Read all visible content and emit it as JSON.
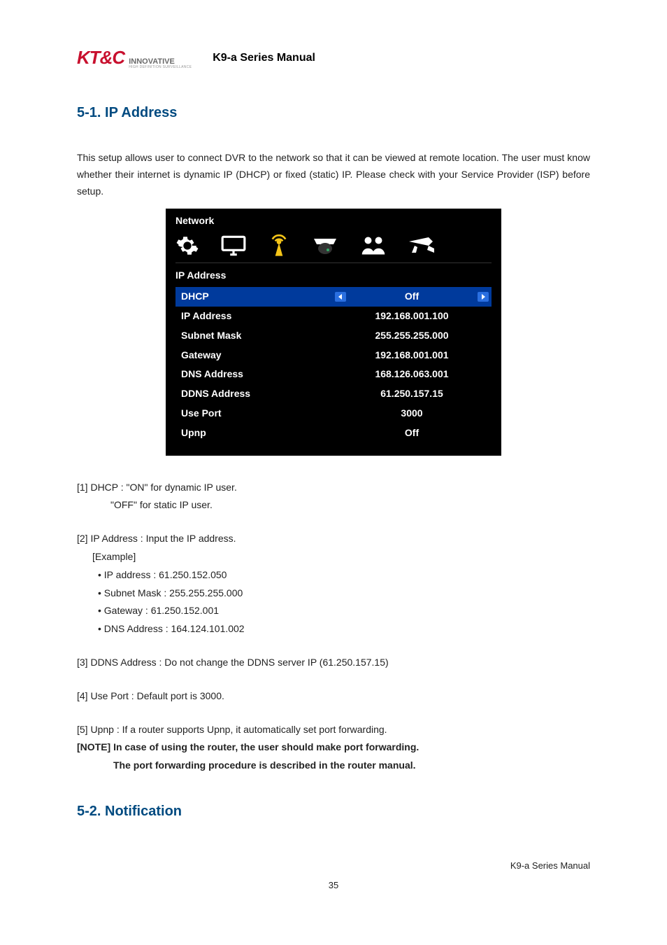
{
  "header": {
    "logo_main": "KT&C",
    "logo_sub": "INNOVATIVE",
    "logo_tiny": "HIGH DEFINITION SURVEILLANCE",
    "manual_title": "K9-a Series Manual"
  },
  "section1": {
    "heading": "5-1. IP Address",
    "intro": "This setup allows user to connect DVR to the network so that it can be viewed at remote location. The user must know whether their internet is dynamic IP (DHCP) or fixed (static) IP. Please check with your Service Provider (ISP) before setup."
  },
  "screenshot": {
    "title": "Network",
    "subtitle": "IP Address",
    "dhcp_label": "DHCP",
    "dhcp_value": "Off",
    "rows": [
      {
        "label": "IP Address",
        "value": "192.168.001.100"
      },
      {
        "label": "Subnet Mask",
        "value": "255.255.255.000"
      },
      {
        "label": "Gateway",
        "value": "192.168.001.001"
      },
      {
        "label": "DNS Address",
        "value": "168.126.063.001"
      },
      {
        "label": "DDNS Address",
        "value": "61.250.157.15"
      },
      {
        "label": "Use Port",
        "value": "3000"
      },
      {
        "label": "Upnp",
        "value": "Off"
      }
    ]
  },
  "notes": {
    "n1a": "[1] DHCP : \"ON\" for dynamic IP user.",
    "n1b": "\"OFF\" for static IP user.",
    "n2a": "[2] IP Address : Input the IP address.",
    "n2b": "[Example]",
    "n2c": "• IP address : 61.250.152.050",
    "n2d": "• Subnet Mask : 255.255.255.000",
    "n2e": "• Gateway : 61.250.152.001",
    "n2f": "• DNS Address : 164.124.101.002",
    "n3": "[3] DDNS Address : Do not change the DDNS server IP (61.250.157.15)",
    "n4": "[4] Use Port : Default port is 3000.",
    "n5": "[5] Upnp : If a router supports Upnp, it automatically set port forwarding.",
    "noteA": "[NOTE] In case of using the router, the user should make port forwarding.",
    "noteB": "The port forwarding procedure is described in the router manual."
  },
  "section2": {
    "heading": "5-2. Notification"
  },
  "footer": {
    "right": "K9-a Series Manual",
    "page": "35"
  },
  "colors": {
    "heading": "#004a80",
    "logo_red": "#c8102e",
    "dhcp_bg": "#003a9c",
    "icon_highlight": "#f5c518"
  }
}
